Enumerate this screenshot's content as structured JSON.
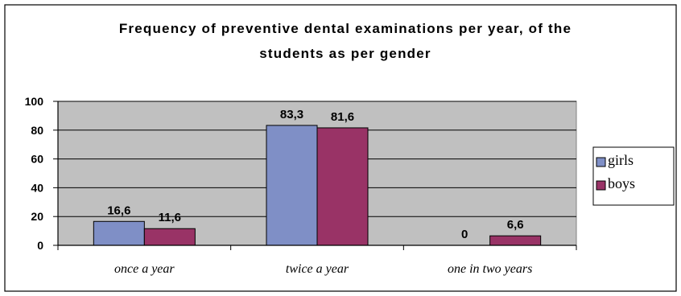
{
  "chart_data": {
    "type": "bar",
    "title_line1": "Frequency of preventive dental examinations per year, of the",
    "title_line2": "students as per gender",
    "xlabel": "",
    "ylabel": "",
    "categories": [
      "once a year",
      "twice a year",
      "one in two years"
    ],
    "series": [
      {
        "name": "girls",
        "values": [
          16.6,
          83.3,
          0
        ],
        "labels": [
          "16,6",
          "83,3",
          "0"
        ],
        "color": "#7f8fc6"
      },
      {
        "name": "boys",
        "values": [
          11.6,
          81.6,
          6.6
        ],
        "labels": [
          "11,6",
          "81,6",
          "6,6"
        ],
        "color": "#993366"
      }
    ],
    "ylim": [
      0,
      100
    ],
    "yticks": [
      0,
      20,
      40,
      60,
      80,
      100
    ],
    "grid": true,
    "plot_background": "#c0c0c0",
    "legend_position": "right"
  }
}
